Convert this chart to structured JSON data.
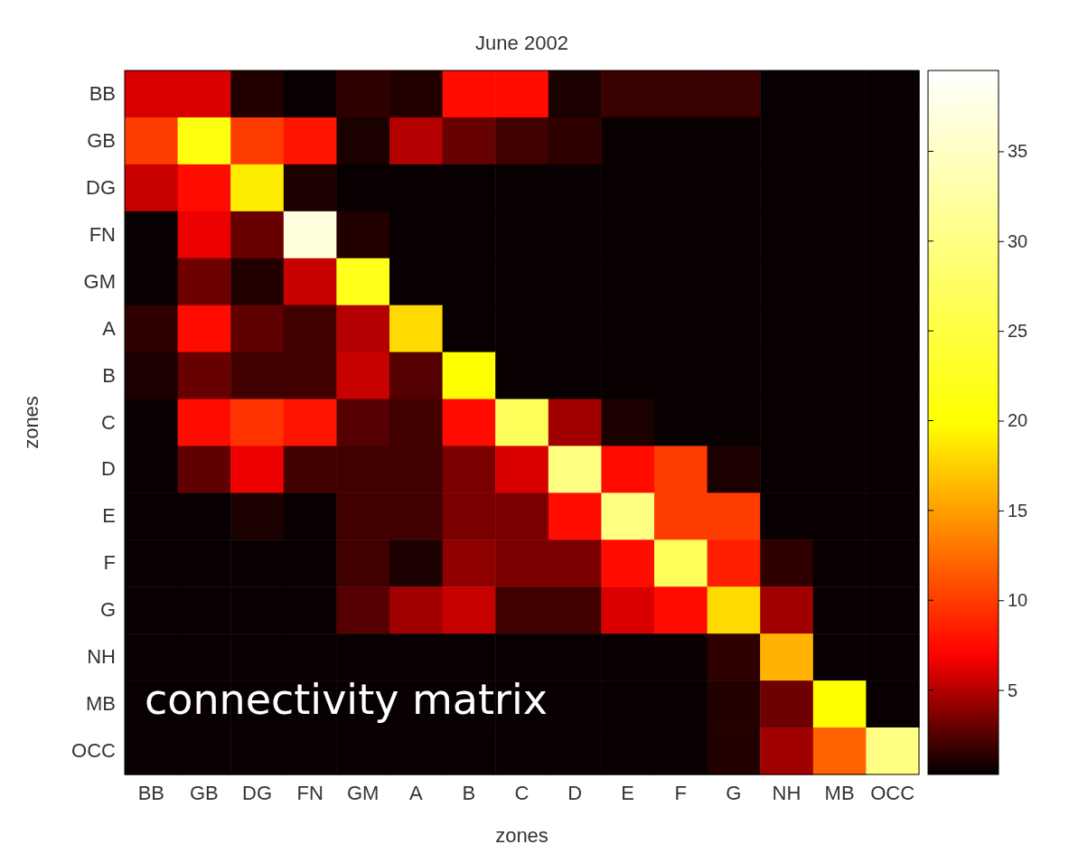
{
  "chart_data": {
    "type": "heatmap",
    "title": "June 2002",
    "xlabel": "zones",
    "ylabel": "zones",
    "annotations": [
      "connectivity matrix"
    ],
    "categories": [
      "BB",
      "GB",
      "DG",
      "FN",
      "GM",
      "A",
      "B",
      "C",
      "D",
      "E",
      "F",
      "G",
      "NH",
      "MB",
      "OCC"
    ],
    "y_categories": [
      "BB",
      "GB",
      "DG",
      "FN",
      "GM",
      "A",
      "B",
      "C",
      "D",
      "E",
      "F",
      "G",
      "NH",
      "MB",
      "OCC"
    ],
    "cells": [
      [
        6,
        6,
        1.2,
        0.5,
        1.5,
        1.2,
        7.5,
        7.5,
        1,
        1.8,
        1.8,
        1.8,
        0.5,
        0.5,
        0.5
      ],
      [
        10,
        21,
        10,
        8,
        1,
        5,
        3,
        2,
        1.5,
        0.5,
        0.5,
        0.5,
        0.5,
        0.5,
        0.5
      ],
      [
        5.5,
        7.5,
        19,
        1,
        0.5,
        0.5,
        0.5,
        0.5,
        0.5,
        0.5,
        0.5,
        0.5,
        0.5,
        0.5,
        0.5
      ],
      [
        0.5,
        6.5,
        3,
        37,
        1.2,
        0.5,
        0.5,
        0.5,
        0.5,
        0.5,
        0.5,
        0.5,
        0.5,
        0.5,
        0.5
      ],
      [
        0.5,
        3.2,
        1.2,
        5.5,
        22,
        0.5,
        0.5,
        0.5,
        0.5,
        0.5,
        0.5,
        0.5,
        0.5,
        0.5,
        0.5
      ],
      [
        1.5,
        7.5,
        2.8,
        2,
        5,
        18,
        0.5,
        0.5,
        0.5,
        0.5,
        0.5,
        0.5,
        0.5,
        0.5,
        0.5
      ],
      [
        1,
        3,
        2,
        2,
        5.5,
        2.5,
        20,
        0.5,
        0.5,
        0.5,
        0.5,
        0.5,
        0.5,
        0.5,
        0.5
      ],
      [
        0.5,
        7.5,
        9.5,
        8,
        2.5,
        2,
        7.5,
        27,
        4.5,
        1,
        0.5,
        0.5,
        0.5,
        0.5,
        0.5
      ],
      [
        0.5,
        2.8,
        6.5,
        2,
        2,
        2,
        3.5,
        6,
        30,
        7.5,
        10,
        1,
        0.5,
        0.5,
        0.5
      ],
      [
        0.5,
        0.5,
        1,
        0.5,
        2,
        2,
        3.5,
        3.5,
        7.5,
        30,
        10,
        10,
        0.5,
        0.5,
        0.5
      ],
      [
        0.5,
        0.5,
        0.5,
        0.5,
        2,
        1,
        4,
        3.5,
        3.5,
        7.5,
        27,
        8.5,
        1.5,
        0.5,
        0.5
      ],
      [
        0.5,
        0.5,
        0.5,
        0.5,
        2.5,
        4.5,
        5.5,
        2,
        2,
        6,
        7.5,
        18,
        4.5,
        0.5,
        0.5
      ],
      [
        0.5,
        0.5,
        0.5,
        0.5,
        0.5,
        0.5,
        0.5,
        0.5,
        0.5,
        0.5,
        0.5,
        1.5,
        16,
        0.5,
        0.5
      ],
      [
        0.5,
        0.5,
        0.5,
        0.5,
        0.5,
        0.5,
        0.5,
        0.5,
        0.5,
        0.5,
        0.5,
        1.2,
        3.2,
        20,
        0.5
      ],
      [
        0.5,
        0.5,
        0.5,
        0.5,
        0.5,
        0.5,
        0.5,
        0.5,
        0.5,
        0.5,
        0.5,
        1.2,
        4.5,
        12,
        30
      ]
    ],
    "clim": [
      0.3,
      39.5
    ],
    "cticks": [
      5,
      10,
      15,
      20,
      25,
      30,
      35
    ]
  }
}
